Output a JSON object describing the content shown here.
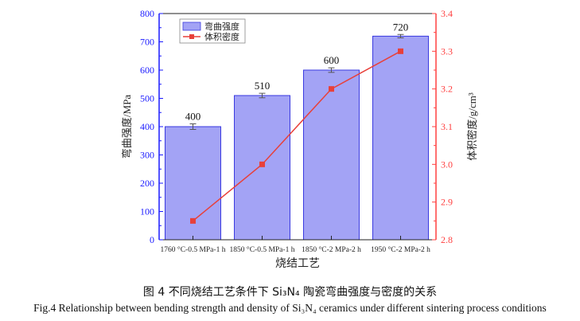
{
  "chart_data": {
    "type": "bar+line",
    "categories": [
      "1760 °C-0.5 MPa-1 h",
      "1850 °C-0.5 MPa-1 h",
      "1850 °C-2 MPa-2 h",
      "1950 °C-2 MPa-2 h"
    ],
    "series": [
      {
        "name": "弯曲强度",
        "type": "bar",
        "axis": "left",
        "values": [
          400,
          510,
          600,
          720
        ],
        "errors": [
          10,
          8,
          8,
          6
        ],
        "data_labels": [
          "400",
          "510",
          "600",
          "720"
        ],
        "color": "#a3a3f5"
      },
      {
        "name": "体积密度",
        "type": "line",
        "axis": "right",
        "values": [
          2.85,
          3.0,
          3.2,
          3.3
        ],
        "color": "#e8403a"
      }
    ],
    "xlabel": "烧结工艺",
    "ylabel": "弯曲强度/MPa",
    "y2label": "体积密度/g/cm³",
    "ylim": [
      0,
      800
    ],
    "y2lim": [
      2.8,
      3.4
    ],
    "yticks": [
      "0",
      "100",
      "200",
      "300",
      "400",
      "500",
      "600",
      "700",
      "800"
    ],
    "y2ticks": [
      "2.8",
      "2.9",
      "3.0",
      "3.1",
      "3.2",
      "3.3",
      "3.4"
    ],
    "left_axis_color": "#1a1aff",
    "right_axis_color": "#ff4040",
    "legend": "top-left",
    "grid": false
  },
  "caption": {
    "cn_prefix": "图 4  不同烧结工艺条件下 ",
    "cn_formula": "Si₃N₄",
    "cn_suffix": " 陶瓷弯曲强度与密度的关系",
    "en": "Fig.4 Relationship between bending strength and density of Si₃N₄ ceramics under different sintering process conditions"
  }
}
